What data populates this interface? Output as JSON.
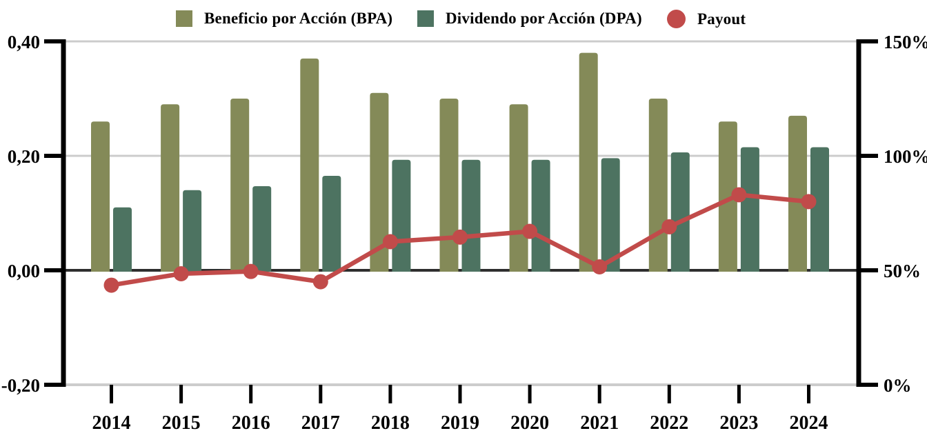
{
  "chart_data": {
    "type": "bar+line combo",
    "title": "",
    "categories": [
      "2014",
      "2015",
      "2016",
      "2017",
      "2018",
      "2019",
      "2020",
      "2021",
      "2022",
      "2023",
      "2024"
    ],
    "series": [
      {
        "name": "Beneficio por Acción (BPA)",
        "type": "bar",
        "axis": "left",
        "color": "#848a58",
        "values": [
          0.26,
          0.29,
          0.3,
          0.37,
          0.31,
          0.3,
          0.29,
          0.38,
          0.3,
          0.26,
          0.27
        ]
      },
      {
        "name": "Dividendo por Acción (DPA)",
        "type": "bar",
        "axis": "left",
        "color": "#4d7361",
        "values": [
          0.11,
          0.14,
          0.147,
          0.165,
          0.193,
          0.193,
          0.193,
          0.196,
          0.206,
          0.215,
          0.215
        ]
      },
      {
        "name": "Payout",
        "type": "line",
        "axis": "right",
        "unit": "%",
        "color": "#c14b4a",
        "values": [
          43.5,
          48.5,
          49.5,
          45,
          62.5,
          64.5,
          67,
          51.5,
          69,
          83,
          80
        ]
      }
    ],
    "left_axis": {
      "min": -0.2,
      "max": 0.4,
      "ticks": [
        {
          "label": "0,40",
          "value": 0.4
        },
        {
          "label": "0,20",
          "value": 0.2
        },
        {
          "label": "0,00",
          "value": 0.0
        },
        {
          "label": "-0,20",
          "value": -0.2
        }
      ]
    },
    "right_axis": {
      "min": 0,
      "max": 150,
      "ticks": [
        {
          "label": "150%",
          "value": 150
        },
        {
          "label": "100%",
          "value": 100
        },
        {
          "label": "50%",
          "value": 50
        },
        {
          "label": "0%",
          "value": 0
        }
      ]
    },
    "grid": "horizontal gridlines at labeled ticks, zero line emphasized",
    "legend_position": "top"
  },
  "colors": {
    "background": "#ffffff",
    "gridline": "#cccccc",
    "zero_line": "#2e2e2e",
    "axis": "#000000"
  }
}
